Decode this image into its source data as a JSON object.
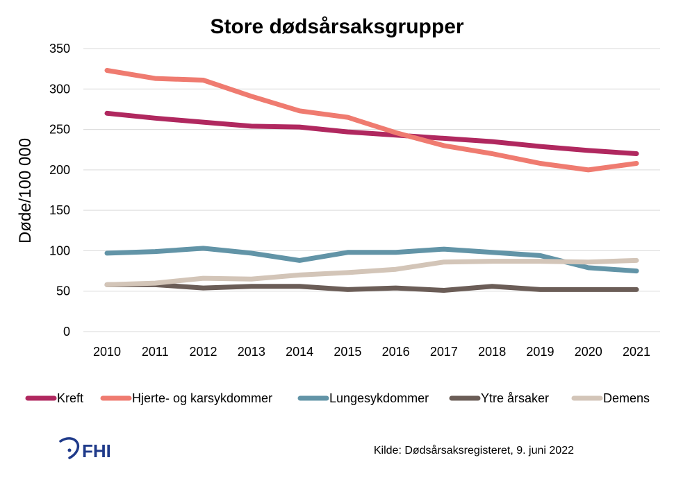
{
  "colors": {
    "grid": "#d9d9d9",
    "text": "#000000",
    "logo": "#1f3a8a"
  },
  "logo": {
    "text": "FHI"
  },
  "source": "Kilde: Dødsårsaksregisteret, 9. juni 2022",
  "chart_data": {
    "type": "line",
    "title": "Store dødsårsaksgrupper",
    "xlabel": "",
    "ylabel": "Døde/100 000",
    "ylim": [
      0,
      350
    ],
    "yticks": [
      0,
      50,
      100,
      150,
      200,
      250,
      300,
      350
    ],
    "grid": true,
    "legend_position": "bottom",
    "x": [
      "2010",
      "2011",
      "2012",
      "2013",
      "2014",
      "2015",
      "2016",
      "2017",
      "2018",
      "2019",
      "2020",
      "2021"
    ],
    "series": [
      {
        "name": "Kreft",
        "color": "#b0285f",
        "values": [
          270,
          264,
          259,
          254,
          253,
          247,
          243,
          239,
          235,
          229,
          224,
          220
        ]
      },
      {
        "name": "Hjerte- og karsykdommer",
        "color": "#ef7b70",
        "values": [
          323,
          313,
          311,
          291,
          273,
          265,
          246,
          230,
          220,
          208,
          200,
          208
        ]
      },
      {
        "name": "Lungesykdommer",
        "color": "#6294a7",
        "values": [
          97,
          99,
          103,
          97,
          88,
          98,
          98,
          102,
          98,
          94,
          79,
          75
        ]
      },
      {
        "name": "Ytre årsaker",
        "color": "#6b5d57",
        "values": [
          58,
          58,
          54,
          56,
          56,
          52,
          54,
          51,
          56,
          52,
          52,
          52
        ]
      },
      {
        "name": "Demens",
        "color": "#d3c5b8",
        "values": [
          58,
          60,
          66,
          65,
          70,
          73,
          77,
          86,
          87,
          87,
          86,
          88
        ]
      }
    ]
  }
}
